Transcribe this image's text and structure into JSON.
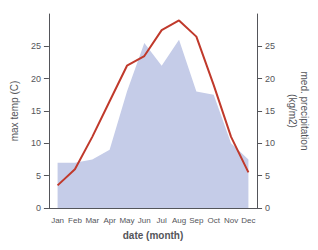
{
  "chart_data": {
    "type": "line",
    "categories": [
      "Jan",
      "Feb",
      "Mar",
      "Apr",
      "May",
      "Jun",
      "Jul",
      "Aug",
      "Sep",
      "Oct",
      "Nov",
      "Dec"
    ],
    "series": [
      {
        "type": "area",
        "axis": "y2",
        "color": "#c5cce8",
        "values": [
          7.0,
          7.0,
          7.5,
          9.0,
          18.0,
          25.5,
          22.0,
          26.0,
          18.0,
          17.5,
          10.0,
          7.5
        ]
      },
      {
        "type": "line",
        "color": "#c0392b",
        "values": [
          3.5,
          6.0,
          11.0,
          16.5,
          22.0,
          23.5,
          27.5,
          29.0,
          26.5,
          19.0,
          11.0,
          5.5
        ]
      }
    ],
    "xlabel": "date (month)",
    "ylabel": "max temp (C)",
    "y2label": "med. precipitation\n(kg/m2)",
    "ylim": [
      0,
      30
    ],
    "yticks": [
      0,
      5,
      10,
      15,
      20,
      25
    ],
    "y2lim": [
      0,
      30
    ],
    "y2ticks": [
      0,
      5,
      10,
      15,
      20,
      25
    ],
    "grid": false
  }
}
